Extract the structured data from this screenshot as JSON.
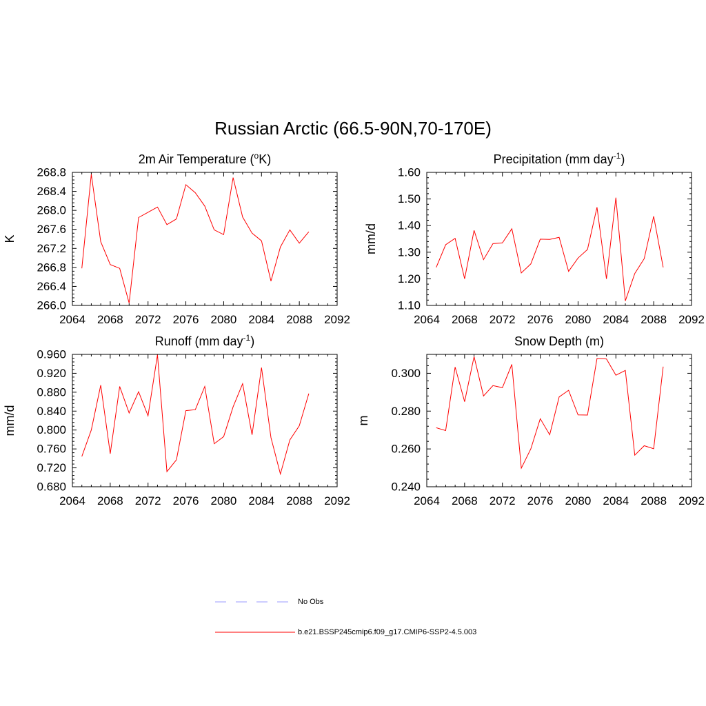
{
  "figure": {
    "title": "Russian Arctic (66.5-90N,70-170E)"
  },
  "legend": {
    "items": [
      {
        "label": "No Obs",
        "color": "#9999ff",
        "style": "dashed"
      },
      {
        "label": "b.e21.BSSP245cmip6.f09_g17.CMIP6-SSP2-4.5.003",
        "color": "#ff0000",
        "style": "solid"
      }
    ]
  },
  "chart_data": [
    {
      "type": "line",
      "title": "2m Air Temperature (°K)",
      "title_main": "2m Air Temperature (",
      "title_sup": "o",
      "title_tail": "K)",
      "xlabel": "",
      "ylabel": "K",
      "xlim": [
        2064,
        2092
      ],
      "ylim": [
        266.0,
        268.8
      ],
      "xticks": [
        2064,
        2068,
        2072,
        2076,
        2080,
        2084,
        2088,
        2092
      ],
      "xtick_labels": [
        "2064",
        "2068",
        "2072",
        "2076",
        "2080",
        "2084",
        "2088",
        "2092"
      ],
      "yticks": [
        266.0,
        266.4,
        266.8,
        267.2,
        267.6,
        268.0,
        268.4,
        268.8
      ],
      "ytick_labels": [
        "266.0",
        "266.4",
        "266.8",
        "267.2",
        "267.6",
        "268.0",
        "268.4",
        "268.8"
      ],
      "series": [
        {
          "color": "#ff0000",
          "x": [
            2065,
            2066,
            2067,
            2068,
            2069,
            2070,
            2071,
            2072,
            2073,
            2074,
            2075,
            2076,
            2077,
            2078,
            2079,
            2080,
            2081,
            2082,
            2083,
            2084,
            2085,
            2086,
            2087,
            2088,
            2089
          ],
          "y": [
            266.78,
            268.76,
            267.34,
            266.86,
            266.78,
            266.05,
            267.85,
            267.96,
            268.07,
            267.7,
            267.82,
            268.54,
            268.37,
            268.09,
            267.59,
            267.49,
            268.69,
            267.86,
            267.52,
            267.36,
            266.51,
            267.23,
            267.59,
            267.31,
            267.55
          ]
        }
      ]
    },
    {
      "type": "line",
      "title": "Precipitation (mm day-1)",
      "title_main": "Precipitation (mm day",
      "title_sup": "-1",
      "title_tail": ")",
      "xlabel": "",
      "ylabel": "mm/d",
      "xlim": [
        2064,
        2092
      ],
      "ylim": [
        1.1,
        1.6
      ],
      "xticks": [
        2064,
        2068,
        2072,
        2076,
        2080,
        2084,
        2088,
        2092
      ],
      "xtick_labels": [
        "2064",
        "2068",
        "2072",
        "2076",
        "2080",
        "2084",
        "2088",
        "2092"
      ],
      "yticks": [
        1.1,
        1.2,
        1.3,
        1.4,
        1.5,
        1.6
      ],
      "ytick_labels": [
        "1.10",
        "1.20",
        "1.30",
        "1.40",
        "1.50",
        "1.60"
      ],
      "series": [
        {
          "color": "#ff0000",
          "x": [
            2065,
            2066,
            2067,
            2068,
            2069,
            2070,
            2071,
            2072,
            2073,
            2074,
            2075,
            2076,
            2077,
            2078,
            2079,
            2080,
            2081,
            2082,
            2083,
            2084,
            2085,
            2086,
            2087,
            2088,
            2089
          ],
          "y": [
            1.243,
            1.328,
            1.352,
            1.2,
            1.382,
            1.272,
            1.332,
            1.335,
            1.388,
            1.222,
            1.256,
            1.349,
            1.348,
            1.356,
            1.228,
            1.278,
            1.31,
            1.469,
            1.2,
            1.505,
            1.117,
            1.22,
            1.276,
            1.435,
            1.243
          ]
        }
      ]
    },
    {
      "type": "line",
      "title": "Runoff (mm day-1)",
      "title_main": "Runoff (mm day",
      "title_sup": "-1",
      "title_tail": ")",
      "xlabel": "",
      "ylabel": "mm/d",
      "xlim": [
        2064,
        2092
      ],
      "ylim": [
        0.68,
        0.96
      ],
      "xticks": [
        2064,
        2068,
        2072,
        2076,
        2080,
        2084,
        2088,
        2092
      ],
      "xtick_labels": [
        "2064",
        "2068",
        "2072",
        "2076",
        "2080",
        "2084",
        "2088",
        "2092"
      ],
      "yticks": [
        0.68,
        0.72,
        0.76,
        0.8,
        0.84,
        0.88,
        0.92,
        0.96
      ],
      "ytick_labels": [
        "0.680",
        "0.720",
        "0.760",
        "0.800",
        "0.840",
        "0.880",
        "0.920",
        "0.960"
      ],
      "series": [
        {
          "color": "#ff0000",
          "x": [
            2065,
            2066,
            2067,
            2068,
            2069,
            2070,
            2071,
            2072,
            2073,
            2074,
            2075,
            2076,
            2077,
            2078,
            2079,
            2080,
            2081,
            2082,
            2083,
            2084,
            2085,
            2086,
            2087,
            2088,
            2089
          ],
          "y": [
            0.744,
            0.8,
            0.895,
            0.75,
            0.892,
            0.836,
            0.881,
            0.83,
            0.959,
            0.712,
            0.737,
            0.841,
            0.843,
            0.892,
            0.771,
            0.786,
            0.849,
            0.898,
            0.79,
            0.932,
            0.784,
            0.707,
            0.779,
            0.809,
            0.877
          ]
        }
      ]
    },
    {
      "type": "line",
      "title": "Snow Depth (m)",
      "title_main": "Snow Depth (m)",
      "title_sup": "",
      "title_tail": "",
      "xlabel": "",
      "ylabel": "m",
      "xlim": [
        2064,
        2092
      ],
      "ylim": [
        0.24,
        0.31
      ],
      "xticks": [
        2064,
        2068,
        2072,
        2076,
        2080,
        2084,
        2088,
        2092
      ],
      "xtick_labels": [
        "2064",
        "2068",
        "2072",
        "2076",
        "2080",
        "2084",
        "2088",
        "2092"
      ],
      "yticks": [
        0.24,
        0.26,
        0.28,
        0.3
      ],
      "ytick_labels": [
        "0.240",
        "0.260",
        "0.280",
        "0.300"
      ],
      "series": [
        {
          "color": "#ff0000",
          "x": [
            2065,
            2066,
            2067,
            2068,
            2069,
            2070,
            2071,
            2072,
            2073,
            2074,
            2075,
            2076,
            2077,
            2078,
            2079,
            2080,
            2081,
            2082,
            2083,
            2084,
            2085,
            2086,
            2087,
            2088,
            2089
          ],
          "y": [
            0.2712,
            0.2697,
            0.3033,
            0.285,
            0.3088,
            0.288,
            0.2935,
            0.2924,
            0.3047,
            0.2498,
            0.26,
            0.276,
            0.2675,
            0.2875,
            0.291,
            0.278,
            0.2779,
            0.3078,
            0.3076,
            0.299,
            0.3015,
            0.2567,
            0.2617,
            0.2601,
            0.3035
          ]
        }
      ]
    }
  ]
}
